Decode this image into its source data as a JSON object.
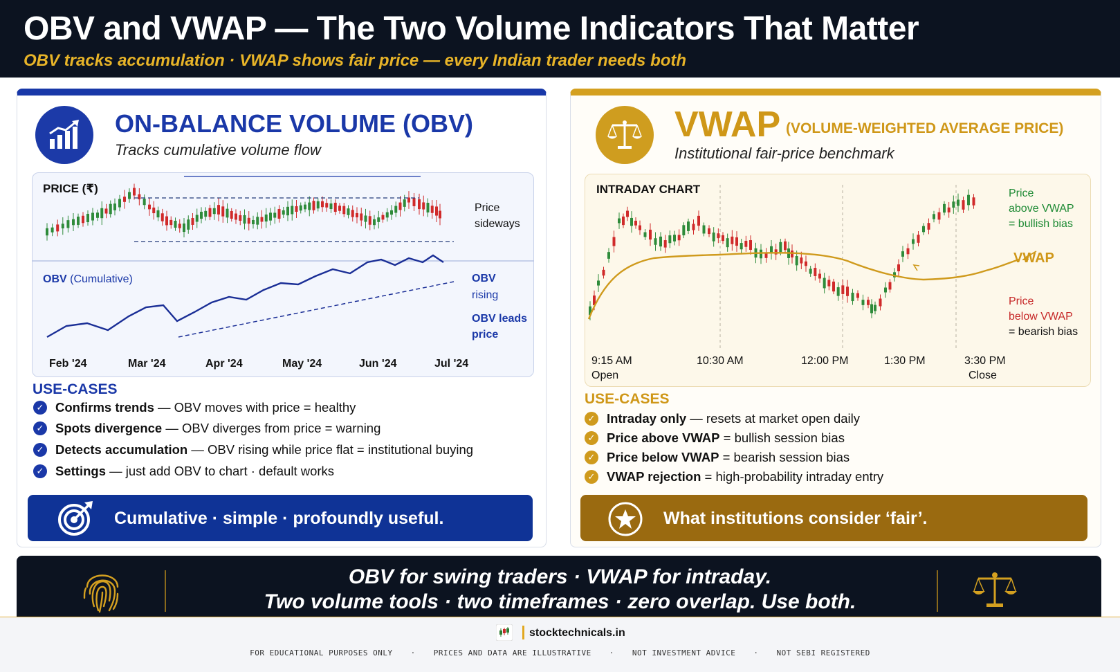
{
  "header": {
    "title": "OBV and VWAP — The Two Volume Indicators That Matter",
    "subtitle": "OBV tracks accumulation · VWAP shows fair price — every Indian trader needs both"
  },
  "obv": {
    "title": "ON-BALANCE VOLUME (OBV)",
    "subtitle": "Tracks cumulative volume flow",
    "icon": "rising-bars-icon",
    "accent": "#1a38a8",
    "chart": {
      "price_label": "PRICE (₹)",
      "obv_label_main": "OBV",
      "obv_label_paren": "(Cumulative)",
      "price_note_1": "Price",
      "price_note_2": "sideways",
      "obv_note_1": "OBV",
      "obv_note_2": "rising",
      "lead_note_1": "OBV leads",
      "lead_note_2": "price",
      "months": [
        "Feb '24",
        "Mar '24",
        "Apr '24",
        "May '24",
        "Jun '24",
        "Jul '24"
      ]
    },
    "usecases_title": "USE-CASES",
    "usecases": [
      {
        "bold": "Confirms trends",
        "rest": " — OBV moves with price = healthy"
      },
      {
        "bold": "Spots divergence",
        "rest": " — OBV diverges from price = warning"
      },
      {
        "bold": "Detects accumulation",
        "rest": " — OBV rising while price flat = institutional buying"
      },
      {
        "bold": "Settings",
        "rest": " — just add OBV to chart · default works"
      }
    ],
    "banner": "Cumulative · simple · profoundly useful.",
    "banner_icon": "target-icon"
  },
  "vwap": {
    "title": "VWAP",
    "title_sub": "(VOLUME-WEIGHTED AVERAGE PRICE)",
    "subtitle": "Institutional fair-price benchmark",
    "icon": "scales-icon",
    "accent": "#cf9718",
    "chart": {
      "label": "INTRADAY CHART",
      "above_1": "Price",
      "above_2": "above VWAP",
      "above_3": "= bullish bias",
      "vwap_label": "VWAP",
      "below_1": "Price",
      "below_2": "below VWAP",
      "below_3": "= bearish bias",
      "times": [
        "9:15 AM",
        "10:30 AM",
        "12:00 PM",
        "1:30 PM",
        "3:30 PM"
      ],
      "open_label": "Open",
      "close_label": "Close"
    },
    "usecases_title": "USE-CASES",
    "usecases": [
      {
        "bold": "Intraday only",
        "rest": " — resets at market open daily"
      },
      {
        "bold": "Price above VWAP",
        "rest": " = bullish session bias"
      },
      {
        "bold": "Price below VWAP",
        "rest": " = bearish session bias"
      },
      {
        "bold": "VWAP rejection",
        "rest": " = high-probability intraday entry"
      }
    ],
    "banner": "What institutions consider ‘fair’.",
    "banner_icon": "star-icon"
  },
  "bottom": {
    "line1": "OBV for swing traders · VWAP for intraday.",
    "line2": "Two volume tools · two timeframes · zero overlap. Use both.",
    "left_icon": "fingerprint-icon",
    "right_icon": "scales-icon"
  },
  "footer": {
    "brand": "stocktechnicals.in",
    "brand_icon": "candlestick-icon",
    "disclaimers": [
      "FOR EDUCATIONAL PURPOSES ONLY",
      "PRICES AND DATA ARE ILLUSTRATIVE",
      "NOT INVESTMENT ADVICE",
      "NOT SEBI REGISTERED"
    ]
  }
}
